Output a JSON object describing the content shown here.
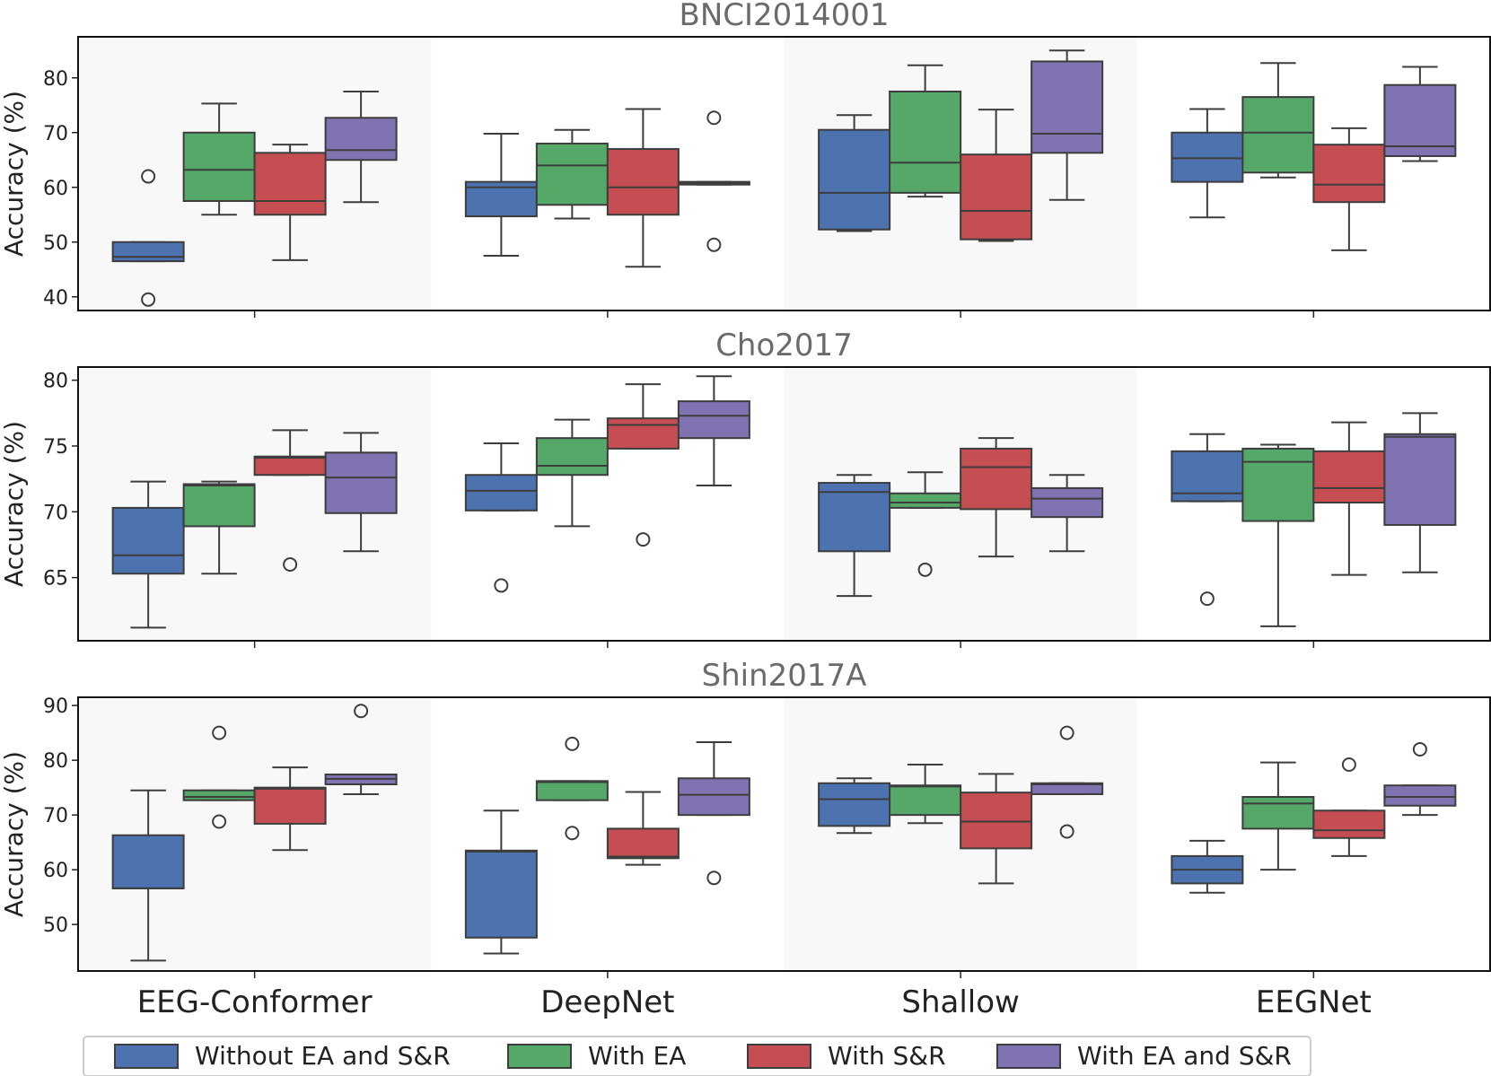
{
  "chart_data": {
    "type": "boxplot",
    "categories": [
      "EEG-Conformer",
      "DeepNet",
      "Shallow",
      "EEGNet"
    ],
    "ylabel": "Accuracy (%)",
    "legend": {
      "placement": "bottom",
      "entries": [
        {
          "name": "Without EA and S&R",
          "color": "#4c72b0"
        },
        {
          "name": "With EA",
          "color": "#55a868"
        },
        {
          "name": "With S&R",
          "color": "#c44e52"
        },
        {
          "name": "With EA and S&R",
          "color": "#8172b2"
        }
      ]
    },
    "panels": [
      {
        "title": "BNCI2014001",
        "ylim": [
          37.5,
          87.5
        ],
        "yticks": [
          40,
          50,
          60,
          70,
          80
        ],
        "boxes": [
          [
            {
              "whislo": 46.5,
              "q1": 46.5,
              "med": 47.3,
              "q3": 50.0,
              "whishi": 50.0,
              "fliers": [
                62.0,
                39.5
              ]
            },
            {
              "whislo": 55.0,
              "q1": 57.5,
              "med": 63.2,
              "q3": 70.0,
              "whishi": 75.3,
              "fliers": []
            },
            {
              "whislo": 46.7,
              "q1": 55.0,
              "med": 57.5,
              "q3": 66.3,
              "whishi": 67.8,
              "fliers": []
            },
            {
              "whislo": 57.3,
              "q1": 65.0,
              "med": 66.8,
              "q3": 72.7,
              "whishi": 77.5,
              "fliers": []
            }
          ],
          [
            {
              "whislo": 47.5,
              "q1": 54.7,
              "med": 60.0,
              "q3": 61.0,
              "whishi": 69.8,
              "fliers": []
            },
            {
              "whislo": 54.3,
              "q1": 56.8,
              "med": 64.0,
              "q3": 68.0,
              "whishi": 70.5,
              "fliers": []
            },
            {
              "whislo": 45.5,
              "q1": 55.0,
              "med": 60.0,
              "q3": 67.0,
              "whishi": 74.3,
              "fliers": []
            },
            {
              "whislo": 60.5,
              "q1": 60.5,
              "med": 60.8,
              "q3": 61.0,
              "whishi": 61.0,
              "fliers": [
                72.7,
                49.5
              ]
            }
          ],
          [
            {
              "whislo": 52.0,
              "q1": 52.3,
              "med": 59.0,
              "q3": 70.5,
              "whishi": 73.2,
              "fliers": []
            },
            {
              "whislo": 58.3,
              "q1": 59.0,
              "med": 64.5,
              "q3": 77.5,
              "whishi": 82.3,
              "fliers": []
            },
            {
              "whislo": 50.2,
              "q1": 50.5,
              "med": 55.7,
              "q3": 66.0,
              "whishi": 74.2,
              "fliers": []
            },
            {
              "whislo": 57.7,
              "q1": 66.3,
              "med": 69.8,
              "q3": 83.0,
              "whishi": 85.0,
              "fliers": []
            }
          ],
          [
            {
              "whislo": 54.5,
              "q1": 61.0,
              "med": 65.3,
              "q3": 70.0,
              "whishi": 74.3,
              "fliers": []
            },
            {
              "whislo": 61.8,
              "q1": 62.7,
              "med": 70.0,
              "q3": 76.5,
              "whishi": 82.7,
              "fliers": []
            },
            {
              "whislo": 48.5,
              "q1": 57.3,
              "med": 60.5,
              "q3": 67.8,
              "whishi": 70.8,
              "fliers": []
            },
            {
              "whislo": 64.8,
              "q1": 65.7,
              "med": 67.5,
              "q3": 78.7,
              "whishi": 82.0,
              "fliers": []
            }
          ]
        ]
      },
      {
        "title": "Cho2017",
        "ylim": [
          60.2,
          81.0
        ],
        "yticks": [
          65,
          70,
          75,
          80
        ],
        "boxes": [
          [
            {
              "whislo": 61.2,
              "q1": 65.3,
              "med": 66.7,
              "q3": 70.3,
              "whishi": 72.3,
              "fliers": []
            },
            {
              "whislo": 65.3,
              "q1": 68.9,
              "med": 72.0,
              "q3": 72.1,
              "whishi": 72.3,
              "fliers": []
            },
            {
              "whislo": 72.8,
              "q1": 72.8,
              "med": 74.1,
              "q3": 74.2,
              "whishi": 76.2,
              "fliers": [
                66.0
              ]
            },
            {
              "whislo": 67.0,
              "q1": 69.9,
              "med": 72.6,
              "q3": 74.5,
              "whishi": 76.0,
              "fliers": []
            }
          ],
          [
            {
              "whislo": 70.1,
              "q1": 70.1,
              "med": 71.6,
              "q3": 72.8,
              "whishi": 75.2,
              "fliers": [
                64.4
              ]
            },
            {
              "whislo": 68.9,
              "q1": 72.8,
              "med": 73.5,
              "q3": 75.6,
              "whishi": 77.0,
              "fliers": []
            },
            {
              "whislo": 74.8,
              "q1": 74.8,
              "med": 76.6,
              "q3": 77.1,
              "whishi": 79.7,
              "fliers": [
                67.9
              ]
            },
            {
              "whislo": 72.0,
              "q1": 75.6,
              "med": 77.3,
              "q3": 78.4,
              "whishi": 80.3,
              "fliers": []
            }
          ],
          [
            {
              "whislo": 63.6,
              "q1": 67.0,
              "med": 71.5,
              "q3": 72.2,
              "whishi": 72.8,
              "fliers": []
            },
            {
              "whislo": 70.3,
              "q1": 70.3,
              "med": 70.7,
              "q3": 71.4,
              "whishi": 73.0,
              "fliers": [
                65.6
              ]
            },
            {
              "whislo": 66.6,
              "q1": 70.2,
              "med": 73.4,
              "q3": 74.8,
              "whishi": 75.6,
              "fliers": []
            },
            {
              "whislo": 67.0,
              "q1": 69.6,
              "med": 71.0,
              "q3": 71.8,
              "whishi": 72.8,
              "fliers": []
            }
          ],
          [
            {
              "whislo": 70.8,
              "q1": 70.8,
              "med": 71.4,
              "q3": 74.6,
              "whishi": 75.9,
              "fliers": [
                63.4
              ]
            },
            {
              "whislo": 61.3,
              "q1": 69.3,
              "med": 73.8,
              "q3": 74.8,
              "whishi": 75.1,
              "fliers": []
            },
            {
              "whislo": 65.2,
              "q1": 70.7,
              "med": 71.8,
              "q3": 74.6,
              "whishi": 76.8,
              "fliers": []
            },
            {
              "whislo": 65.4,
              "q1": 69.0,
              "med": 75.7,
              "q3": 75.9,
              "whishi": 77.5,
              "fliers": []
            }
          ]
        ]
      },
      {
        "title": "Shin2017A",
        "ylim": [
          41.5,
          91.5
        ],
        "yticks": [
          50,
          60,
          70,
          80,
          90
        ],
        "boxes": [
          [
            {
              "whislo": 43.4,
              "q1": 56.6,
              "med": 56.6,
              "q3": 66.3,
              "whishi": 74.5,
              "fliers": []
            },
            {
              "whislo": 72.7,
              "q1": 72.7,
              "med": 73.3,
              "q3": 74.5,
              "whishi": 74.5,
              "fliers": [
                85.0,
                68.8
              ]
            },
            {
              "whislo": 63.6,
              "q1": 68.4,
              "med": 74.8,
              "q3": 75.0,
              "whishi": 78.7,
              "fliers": []
            },
            {
              "whislo": 73.8,
              "q1": 75.6,
              "med": 76.6,
              "q3": 77.4,
              "whishi": 77.4,
              "fliers": [
                89.0
              ]
            }
          ],
          [
            {
              "whislo": 44.7,
              "q1": 47.6,
              "med": 63.3,
              "q3": 63.5,
              "whishi": 70.8,
              "fliers": []
            },
            {
              "whislo": 72.7,
              "q1": 72.7,
              "med": 76.0,
              "q3": 76.2,
              "whishi": 76.2,
              "fliers": [
                83.0,
                66.7
              ]
            },
            {
              "whislo": 60.9,
              "q1": 62.1,
              "med": 62.4,
              "q3": 67.5,
              "whishi": 74.2,
              "fliers": []
            },
            {
              "whislo": 70.0,
              "q1": 70.0,
              "med": 73.7,
              "q3": 76.7,
              "whishi": 83.3,
              "fliers": [
                58.5
              ]
            }
          ],
          [
            {
              "whislo": 66.7,
              "q1": 68.0,
              "med": 72.9,
              "q3": 75.8,
              "whishi": 76.7,
              "fliers": []
            },
            {
              "whislo": 68.5,
              "q1": 70.0,
              "med": 75.2,
              "q3": 75.4,
              "whishi": 79.2,
              "fliers": []
            },
            {
              "whislo": 57.5,
              "q1": 63.9,
              "med": 68.8,
              "q3": 74.1,
              "whishi": 77.5,
              "fliers": []
            },
            {
              "whislo": 73.8,
              "q1": 73.8,
              "med": 75.6,
              "q3": 75.8,
              "whishi": 75.8,
              "fliers": [
                85.0,
                67.0
              ]
            }
          ],
          [
            {
              "whislo": 55.8,
              "q1": 57.5,
              "med": 60.0,
              "q3": 62.5,
              "whishi": 65.3,
              "fliers": []
            },
            {
              "whislo": 60.0,
              "q1": 67.5,
              "med": 72.1,
              "q3": 73.3,
              "whishi": 79.6,
              "fliers": []
            },
            {
              "whislo": 62.5,
              "q1": 65.8,
              "med": 67.2,
              "q3": 70.8,
              "whishi": 70.8,
              "fliers": [
                79.2
              ]
            },
            {
              "whislo": 70.0,
              "q1": 71.7,
              "med": 73.3,
              "q3": 75.4,
              "whishi": 75.4,
              "fliers": [
                82.0
              ]
            }
          ]
        ]
      }
    ]
  }
}
